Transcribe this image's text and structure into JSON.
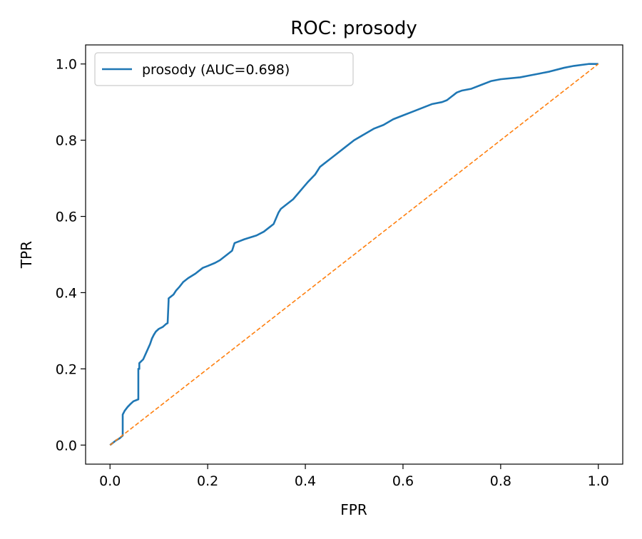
{
  "chart_data": {
    "type": "line",
    "title": "ROC: prosody",
    "xlabel": "FPR",
    "ylabel": "TPR",
    "xlim": [
      -0.05,
      1.05
    ],
    "ylim": [
      -0.05,
      1.05
    ],
    "xticks": [
      0.0,
      0.2,
      0.4,
      0.6,
      0.8,
      1.0
    ],
    "yticks": [
      0.0,
      0.2,
      0.4,
      0.6,
      0.8,
      1.0
    ],
    "xtick_labels": [
      "0.0",
      "0.2",
      "0.4",
      "0.6",
      "0.8",
      "1.0"
    ],
    "ytick_labels": [
      "0.0",
      "0.2",
      "0.4",
      "0.6",
      "0.8",
      "1.0"
    ],
    "grid": false,
    "legend_position": "top-left",
    "series": [
      {
        "name": "prosody (AUC=0.698)",
        "color": "#1f77b4",
        "style": "solid",
        "x": [
          0.0,
          0.005,
          0.012,
          0.02,
          0.026,
          0.026,
          0.03,
          0.036,
          0.042,
          0.048,
          0.058,
          0.058,
          0.06,
          0.06,
          0.068,
          0.075,
          0.082,
          0.086,
          0.09,
          0.094,
          0.1,
          0.108,
          0.115,
          0.118,
          0.12,
          0.12,
          0.125,
          0.13,
          0.135,
          0.142,
          0.15,
          0.16,
          0.175,
          0.19,
          0.2,
          0.215,
          0.225,
          0.24,
          0.25,
          0.255,
          0.265,
          0.275,
          0.3,
          0.315,
          0.325,
          0.335,
          0.345,
          0.35,
          0.36,
          0.375,
          0.385,
          0.395,
          0.405,
          0.42,
          0.43,
          0.44,
          0.45,
          0.465,
          0.48,
          0.5,
          0.52,
          0.54,
          0.56,
          0.58,
          0.6,
          0.62,
          0.64,
          0.66,
          0.68,
          0.69,
          0.71,
          0.72,
          0.74,
          0.76,
          0.78,
          0.8,
          0.84,
          0.86,
          0.88,
          0.9,
          0.93,
          0.95,
          0.98,
          1.0
        ],
        "y": [
          0.0,
          0.005,
          0.012,
          0.018,
          0.025,
          0.08,
          0.09,
          0.1,
          0.108,
          0.115,
          0.12,
          0.2,
          0.2,
          0.215,
          0.225,
          0.245,
          0.265,
          0.28,
          0.29,
          0.298,
          0.305,
          0.31,
          0.318,
          0.32,
          0.38,
          0.385,
          0.39,
          0.395,
          0.405,
          0.415,
          0.428,
          0.438,
          0.45,
          0.465,
          0.47,
          0.478,
          0.485,
          0.5,
          0.51,
          0.53,
          0.535,
          0.54,
          0.55,
          0.56,
          0.57,
          0.58,
          0.61,
          0.62,
          0.63,
          0.645,
          0.66,
          0.675,
          0.69,
          0.71,
          0.73,
          0.74,
          0.75,
          0.765,
          0.78,
          0.8,
          0.815,
          0.83,
          0.84,
          0.855,
          0.865,
          0.875,
          0.885,
          0.895,
          0.9,
          0.905,
          0.925,
          0.93,
          0.935,
          0.945,
          0.955,
          0.96,
          0.965,
          0.97,
          0.975,
          0.98,
          0.99,
          0.995,
          1.0,
          1.0
        ]
      },
      {
        "name": "",
        "color": "#ff7f0e",
        "style": "dashed",
        "x": [
          0.0,
          1.0
        ],
        "y": [
          0.0,
          1.0
        ]
      }
    ]
  }
}
